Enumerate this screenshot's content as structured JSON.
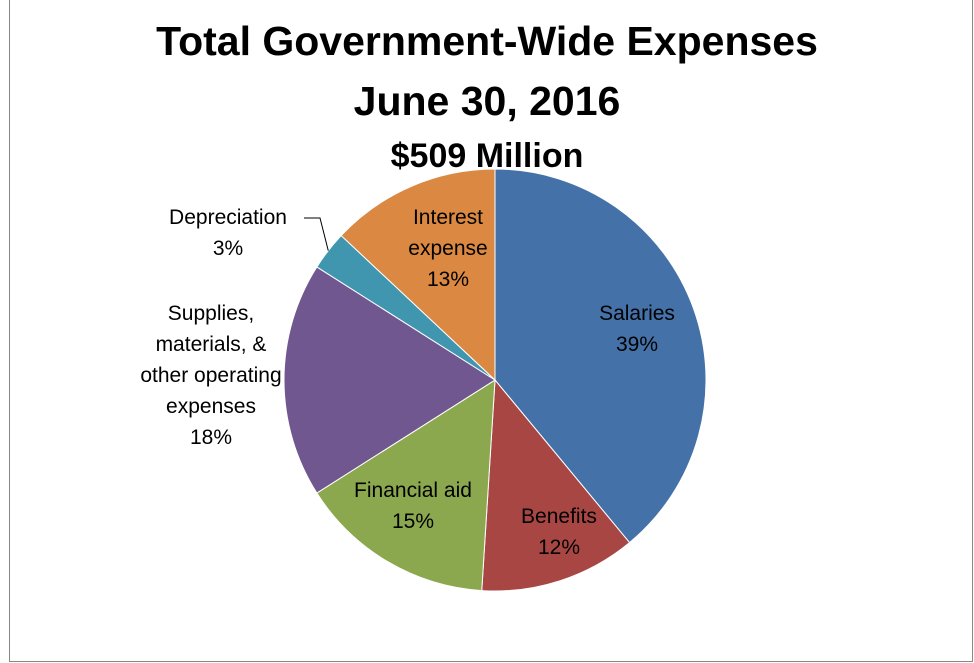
{
  "chart_data": {
    "type": "pie",
    "title": "Total Government-Wide Expenses",
    "subtitle": "June 30, 2016",
    "total_label": "$509 Million",
    "slices": [
      {
        "lines": [
          "Salaries"
        ],
        "pct_label": "39%",
        "value": 39,
        "color": "#4472A8"
      },
      {
        "lines": [
          "Benefits"
        ],
        "pct_label": "12%",
        "value": 12,
        "color": "#A84644"
      },
      {
        "lines": [
          "Financial aid"
        ],
        "pct_label": "15%",
        "value": 15,
        "color": "#8BA84E"
      },
      {
        "lines": [
          "Supplies,",
          "materials, &",
          "other operating",
          "expenses"
        ],
        "pct_label": "18%",
        "value": 18,
        "color": "#71578F"
      },
      {
        "lines": [
          "Depreciation"
        ],
        "pct_label": "3%",
        "value": 3,
        "color": "#4096AF"
      },
      {
        "lines": [
          "Interest",
          "expense"
        ],
        "pct_label": "13%",
        "value": 13,
        "color": "#DA8842"
      }
    ],
    "legend": "none"
  }
}
